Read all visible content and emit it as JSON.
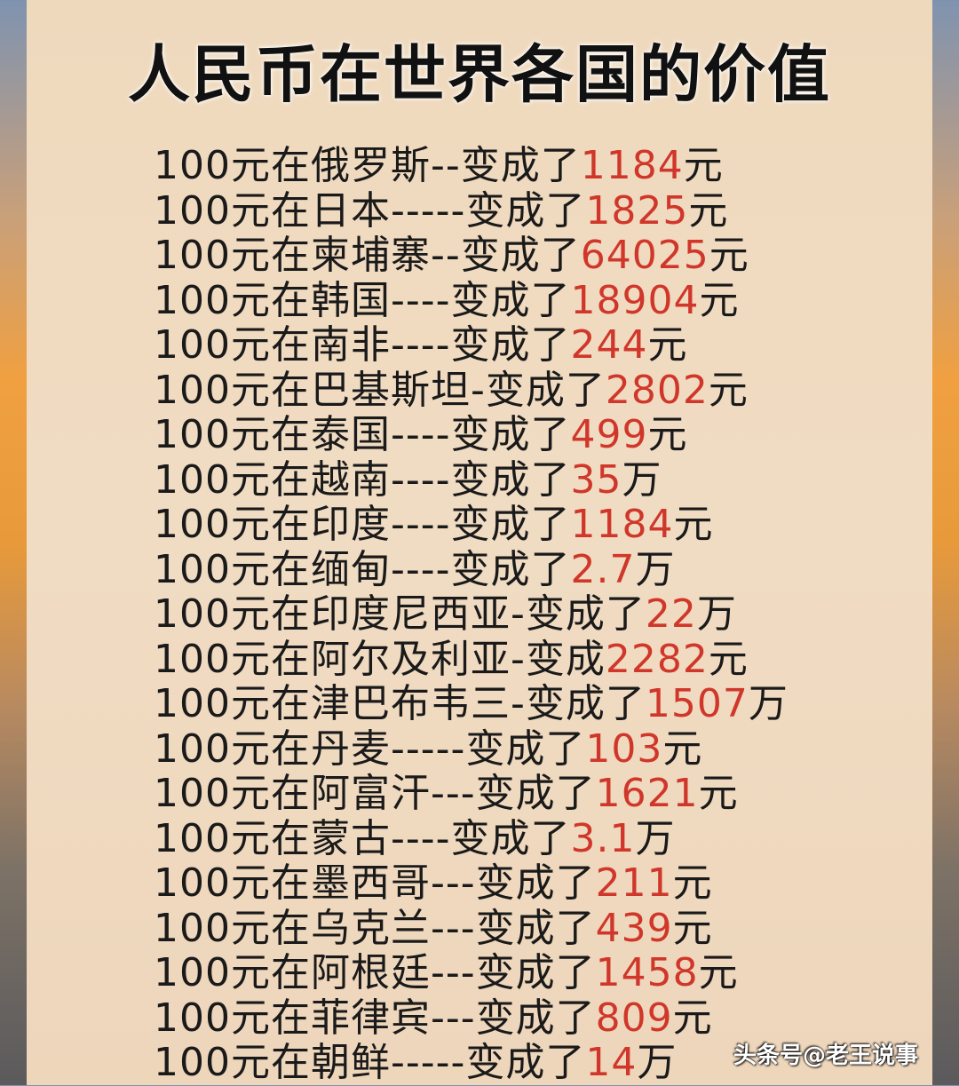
{
  "title": "人民币在世界各国的价值",
  "rows": [
    {
      "label": "100元在俄罗斯--变成了",
      "value": "1184",
      "unit": "元"
    },
    {
      "label": "100元在日本-----变成了",
      "value": "1825",
      "unit": "元"
    },
    {
      "label": "100元在柬埔寨--变成了",
      "value": "64025",
      "unit": "元"
    },
    {
      "label": "100元在韩国----变成了",
      "value": "18904",
      "unit": "元"
    },
    {
      "label": "100元在南非----变成了",
      "value": "244",
      "unit": "元"
    },
    {
      "label": "100元在巴基斯坦-变成了",
      "value": "2802",
      "unit": "元"
    },
    {
      "label": "100元在泰国----变成了",
      "value": "499",
      "unit": "元"
    },
    {
      "label": "100元在越南----变成了",
      "value": "35",
      "unit": "万"
    },
    {
      "label": "100元在印度----变成了",
      "value": "1184",
      "unit": "元"
    },
    {
      "label": "100元在缅甸----变成了",
      "value": "2.7",
      "unit": "万"
    },
    {
      "label": "100元在印度尼西亚-变成了",
      "value": "22",
      "unit": "万"
    },
    {
      "label": "100元在阿尔及利亚-变成",
      "value": "2282",
      "unit": "元"
    },
    {
      "label": "100元在津巴布韦三-变成了",
      "value": "1507",
      "unit": "万"
    },
    {
      "label": "100元在丹麦-----变成了",
      "value": "103",
      "unit": "元"
    },
    {
      "label": "100元在阿富汗---变成了",
      "value": "1621",
      "unit": "元"
    },
    {
      "label": "100元在蒙古----变成了",
      "value": "3.1",
      "unit": "万"
    },
    {
      "label": "100元在墨西哥---变成了",
      "value": "211",
      "unit": "元"
    },
    {
      "label": "100元在乌克兰---变成了",
      "value": "439",
      "unit": "元"
    },
    {
      "label": "100元在阿根廷---变成了",
      "value": "1458",
      "unit": "元"
    },
    {
      "label": "100元在菲律宾---变成了",
      "value": "809",
      "unit": "元"
    },
    {
      "label": "100元在朝鲜-----变成了",
      "value": "14",
      "unit": "万"
    }
  ],
  "watermark": "头条号@老王说事",
  "colors": {
    "value": "#d0372a",
    "text": "#1a1a1a",
    "panel": "#efd9bd"
  }
}
